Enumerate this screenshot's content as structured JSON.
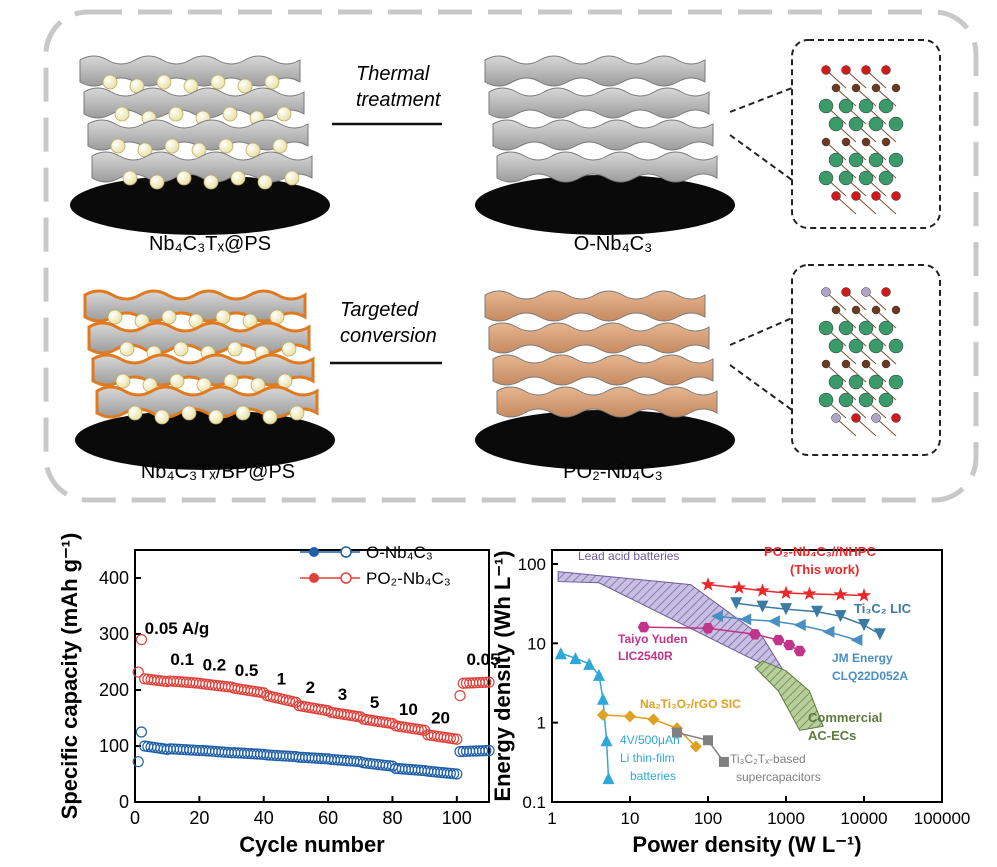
{
  "schematic": {
    "top_left_label": "Nb₄C₃Tₓ@PS",
    "top_right_label": "O-Nb₄C₃",
    "bottom_left_label": "Nb₄C₃Tₓ/BP@PS",
    "bottom_right_label": "PO₂-Nb₄C₃",
    "arrow1_line1": "Thermal",
    "arrow1_line2": "treatment",
    "arrow2_line1": "Targeted",
    "arrow2_line2": "conversion",
    "colors": {
      "sheet_gray": "#bdbdbd",
      "sheet_orange": "#d8a17a",
      "edge_orange": "#e07a20",
      "ball": "#f7f3c8",
      "atom_nb": "#3a9a6a",
      "atom_c": "#6b3a1f",
      "atom_o": "#d01a1a",
      "atom_p": "#b0a4c8",
      "border": "#c8c8c8"
    }
  },
  "chart_data": [
    {
      "type": "scatter",
      "title": "",
      "xlabel": "Cycle number",
      "ylabel": "Specific capacity (mAh g⁻¹)",
      "xlim": [
        0,
        110
      ],
      "ylim": [
        0,
        450
      ],
      "xticks": [
        0,
        20,
        40,
        60,
        80,
        100
      ],
      "yticks": [
        0,
        100,
        200,
        300,
        400
      ],
      "legend": [
        "O-Nb₄C₃",
        "PO₂-Nb₄C₃"
      ],
      "legend_position": "top-right",
      "series_colors": [
        "#1f5fa8",
        "#e0413a"
      ],
      "rate_labels": [
        {
          "text": "0.05 A/g",
          "cycle": 3,
          "cap": 300
        },
        {
          "text": "0.1",
          "cycle": 11,
          "cap": 245
        },
        {
          "text": "0.2",
          "cycle": 21,
          "cap": 235
        },
        {
          "text": "0.5",
          "cycle": 31,
          "cap": 225
        },
        {
          "text": "1",
          "cycle": 44,
          "cap": 210
        },
        {
          "text": "2",
          "cycle": 53,
          "cap": 195
        },
        {
          "text": "3",
          "cycle": 63,
          "cap": 182
        },
        {
          "text": "5",
          "cycle": 73,
          "cap": 168
        },
        {
          "text": "10",
          "cycle": 82,
          "cap": 155
        },
        {
          "text": "20",
          "cycle": 92,
          "cap": 140
        },
        {
          "text": "0.05",
          "cycle": 103,
          "cap": 245
        }
      ],
      "series": [
        {
          "name": "O-Nb₄C₃",
          "segments": [
            [
              1,
              1,
              72,
              72
            ],
            [
              2,
              2,
              125,
              125
            ],
            [
              3,
              10,
              100,
              94
            ],
            [
              11,
              20,
              95,
              92
            ],
            [
              21,
              30,
              92,
              88
            ],
            [
              31,
              40,
              88,
              85
            ],
            [
              41,
              50,
              84,
              81
            ],
            [
              51,
              60,
              80,
              77
            ],
            [
              61,
              70,
              76,
              72
            ],
            [
              71,
              80,
              70,
              64
            ],
            [
              81,
              90,
              60,
              56
            ],
            [
              91,
              100,
              55,
              50
            ],
            [
              101,
              110,
              90,
              92
            ]
          ]
        },
        {
          "name": "PO₂-Nb₄C₃",
          "segments": [
            [
              1,
              1,
              232,
              232
            ],
            [
              2,
              2,
              290,
              290
            ],
            [
              3,
              10,
              220,
              215
            ],
            [
              11,
              20,
              216,
              212
            ],
            [
              21,
              30,
              211,
              205
            ],
            [
              31,
              40,
              203,
              195
            ],
            [
              41,
              50,
              190,
              178
            ],
            [
              51,
              60,
              172,
              163
            ],
            [
              61,
              70,
              160,
              152
            ],
            [
              71,
              80,
              148,
              140
            ],
            [
              81,
              90,
              136,
              128
            ],
            [
              91,
              100,
              120,
              112
            ],
            [
              101,
              101,
              190,
              190
            ],
            [
              102,
              110,
              212,
              214
            ]
          ]
        }
      ]
    },
    {
      "type": "line",
      "title": "",
      "xlabel": "Power density (W L⁻¹)",
      "ylabel": "Energy density (Wh L⁻¹)",
      "xscale": "log",
      "yscale": "log",
      "xlim": [
        1,
        100000
      ],
      "ylim": [
        0.1,
        150
      ],
      "xticks": [
        "1",
        "10",
        "100",
        "1000",
        "10000",
        "100000"
      ],
      "yticks": [
        "0.1",
        "1",
        "10",
        "100"
      ],
      "series": [
        {
          "name": "PO₂-Nb₄C₃//NHPC",
          "color": "#e8282a",
          "marker": "star",
          "x": [
            100,
            250,
            500,
            1000,
            2000,
            5000,
            10000
          ],
          "y": [
            55,
            50,
            46,
            43,
            42,
            41,
            40
          ]
        },
        {
          "name": "Ti₃C₂ LIC",
          "color": "#3b7aa2",
          "marker": "triangle-down",
          "x": [
            230,
            500,
            1000,
            2500,
            5000,
            10000,
            16000
          ],
          "y": [
            32,
            29,
            27,
            25,
            22,
            17,
            13
          ]
        },
        {
          "name": "JM Energy CLQ22D052A",
          "color": "#4a8fc4",
          "marker": "triangle-left",
          "x": [
            130,
            300,
            700,
            1500,
            3500,
            8000
          ],
          "y": [
            22,
            20,
            19,
            17,
            14,
            11
          ]
        },
        {
          "name": "Taiyo Yuden LIC2540R",
          "color": "#c0348a",
          "marker": "hexagon",
          "x": [
            15,
            100,
            400,
            800,
            1100,
            1500
          ],
          "y": [
            16,
            15.5,
            13,
            11,
            9.5,
            8
          ]
        },
        {
          "name": "4V/500μAh Li thin-film batteries",
          "color": "#2ea8d8",
          "marker": "triangle-up",
          "x": [
            1.3,
            2,
            3,
            4,
            4.5,
            5,
            5.3
          ],
          "y": [
            7.5,
            6.5,
            5.5,
            4,
            2,
            0.6,
            0.2
          ]
        },
        {
          "name": "Na₂Ti₃O₇/rGO SIC",
          "color": "#e0a020",
          "marker": "diamond",
          "x": [
            4.5,
            10,
            20,
            40,
            70
          ],
          "y": [
            1.25,
            1.2,
            1.1,
            0.85,
            0.5
          ]
        },
        {
          "name": "Ti₃C₂Tₓ-based supercapacitors",
          "color": "#808080",
          "marker": "square",
          "x": [
            40,
            100,
            160
          ],
          "y": [
            0.75,
            0.6,
            0.32
          ]
        }
      ],
      "bands": [
        {
          "name": "Lead acid batteries",
          "color": "#b7a9d6"
        },
        {
          "name": "Commercial AC-ECs",
          "color": "#8fae6a"
        }
      ],
      "labels": {
        "lead": "Lead acid batteries",
        "this_work_1": "PO₂-Nb₄C₃//NHPC",
        "this_work_2": "(This work)",
        "ti3c2_lic": "Ti₃C₂ LIC",
        "taiyo_1": "Taiyo Yuden",
        "taiyo_2": "LIC2540R",
        "jm_1": "JM Energy",
        "jm_2": "CLQ22D052A",
        "na_sic": "Na₂Ti₃O₇/rGO SIC",
        "commercial_1": "Commercial",
        "commercial_2": "AC-ECs",
        "li_1": "4V/500μAh",
        "li_2": "Li thin-film",
        "li_3": "batteries",
        "ti_super_1": "Ti₃C₂Tₓ-based",
        "ti_super_2": "supercapacitors"
      }
    }
  ]
}
